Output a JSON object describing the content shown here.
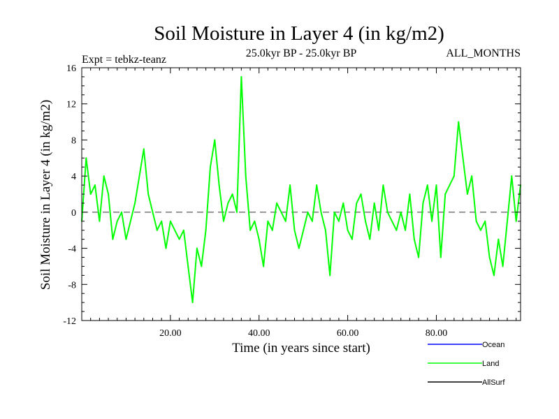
{
  "chart_data": {
    "type": "line",
    "title": "Soil Moisture in Layer 4 (in kg/m2)",
    "subtitle": "25.0kyr BP - 25.0kyr BP",
    "expt_label": "Expt = tebkz-teanz",
    "months_label": "ALL_MONTHS",
    "xlabel": "Time (in years since start)",
    "ylabel": "Soil Moisture in Layer 4 (in kg/m2)",
    "xlim": [
      0,
      99
    ],
    "ylim": [
      -12,
      16
    ],
    "x_ticks": [
      20,
      40,
      60,
      80
    ],
    "x_tick_labels": [
      "20.00",
      "40.00",
      "60.00",
      "80.00"
    ],
    "y_ticks": [
      -12,
      -8,
      -4,
      0,
      4,
      8,
      12,
      16
    ],
    "y_tick_labels": [
      "-12",
      "-8",
      "-4",
      "0",
      "4",
      "8",
      "12",
      "16"
    ],
    "zero_line": 0,
    "legend": [
      {
        "name": "Ocean",
        "color": "#0000ff"
      },
      {
        "name": "Land",
        "color": "#00ff00"
      },
      {
        "name": "AllSurf",
        "color": "#000000"
      }
    ],
    "series": [
      {
        "name": "Land",
        "color": "#00ff00",
        "x": [
          0,
          1,
          2,
          3,
          4,
          5,
          6,
          7,
          8,
          9,
          10,
          11,
          12,
          13,
          14,
          15,
          16,
          17,
          18,
          19,
          20,
          21,
          22,
          23,
          24,
          25,
          26,
          27,
          28,
          29,
          30,
          31,
          32,
          33,
          34,
          35,
          36,
          37,
          38,
          39,
          40,
          41,
          42,
          43,
          44,
          45,
          46,
          47,
          48,
          49,
          50,
          51,
          52,
          53,
          54,
          55,
          56,
          57,
          58,
          59,
          60,
          61,
          62,
          63,
          64,
          65,
          66,
          67,
          68,
          69,
          70,
          71,
          72,
          73,
          74,
          75,
          76,
          77,
          78,
          79,
          80,
          81,
          82,
          83,
          84,
          85,
          86,
          87,
          88,
          89,
          90,
          91,
          92,
          93,
          94,
          95,
          96,
          97,
          98,
          99
        ],
        "values": [
          -1,
          6,
          2,
          3,
          -1,
          4,
          2,
          -3,
          -1,
          0,
          -3,
          -1,
          1,
          4,
          7,
          2,
          0,
          -2,
          -1,
          -4,
          -1,
          -2,
          -3,
          -2,
          -6,
          -10,
          -4,
          -6,
          -2,
          5,
          8,
          3,
          -1,
          1,
          2,
          0,
          15,
          4,
          -2,
          -1,
          -3,
          -6,
          -1,
          -2,
          1,
          0,
          -1,
          3,
          -2,
          -4,
          -2,
          0,
          -1,
          3,
          0,
          -2,
          -7,
          0,
          -1,
          1,
          -2,
          -3,
          1,
          2,
          -1,
          -3,
          1,
          -2,
          3,
          0,
          -1,
          -2,
          0,
          -2,
          2,
          -3,
          -5,
          1,
          3,
          -1,
          3,
          -5,
          2,
          3,
          4,
          10,
          6,
          2,
          4,
          -1,
          -2,
          -1,
          -5,
          -7,
          -3,
          -6,
          -1,
          4,
          -1,
          3
        ]
      }
    ]
  }
}
